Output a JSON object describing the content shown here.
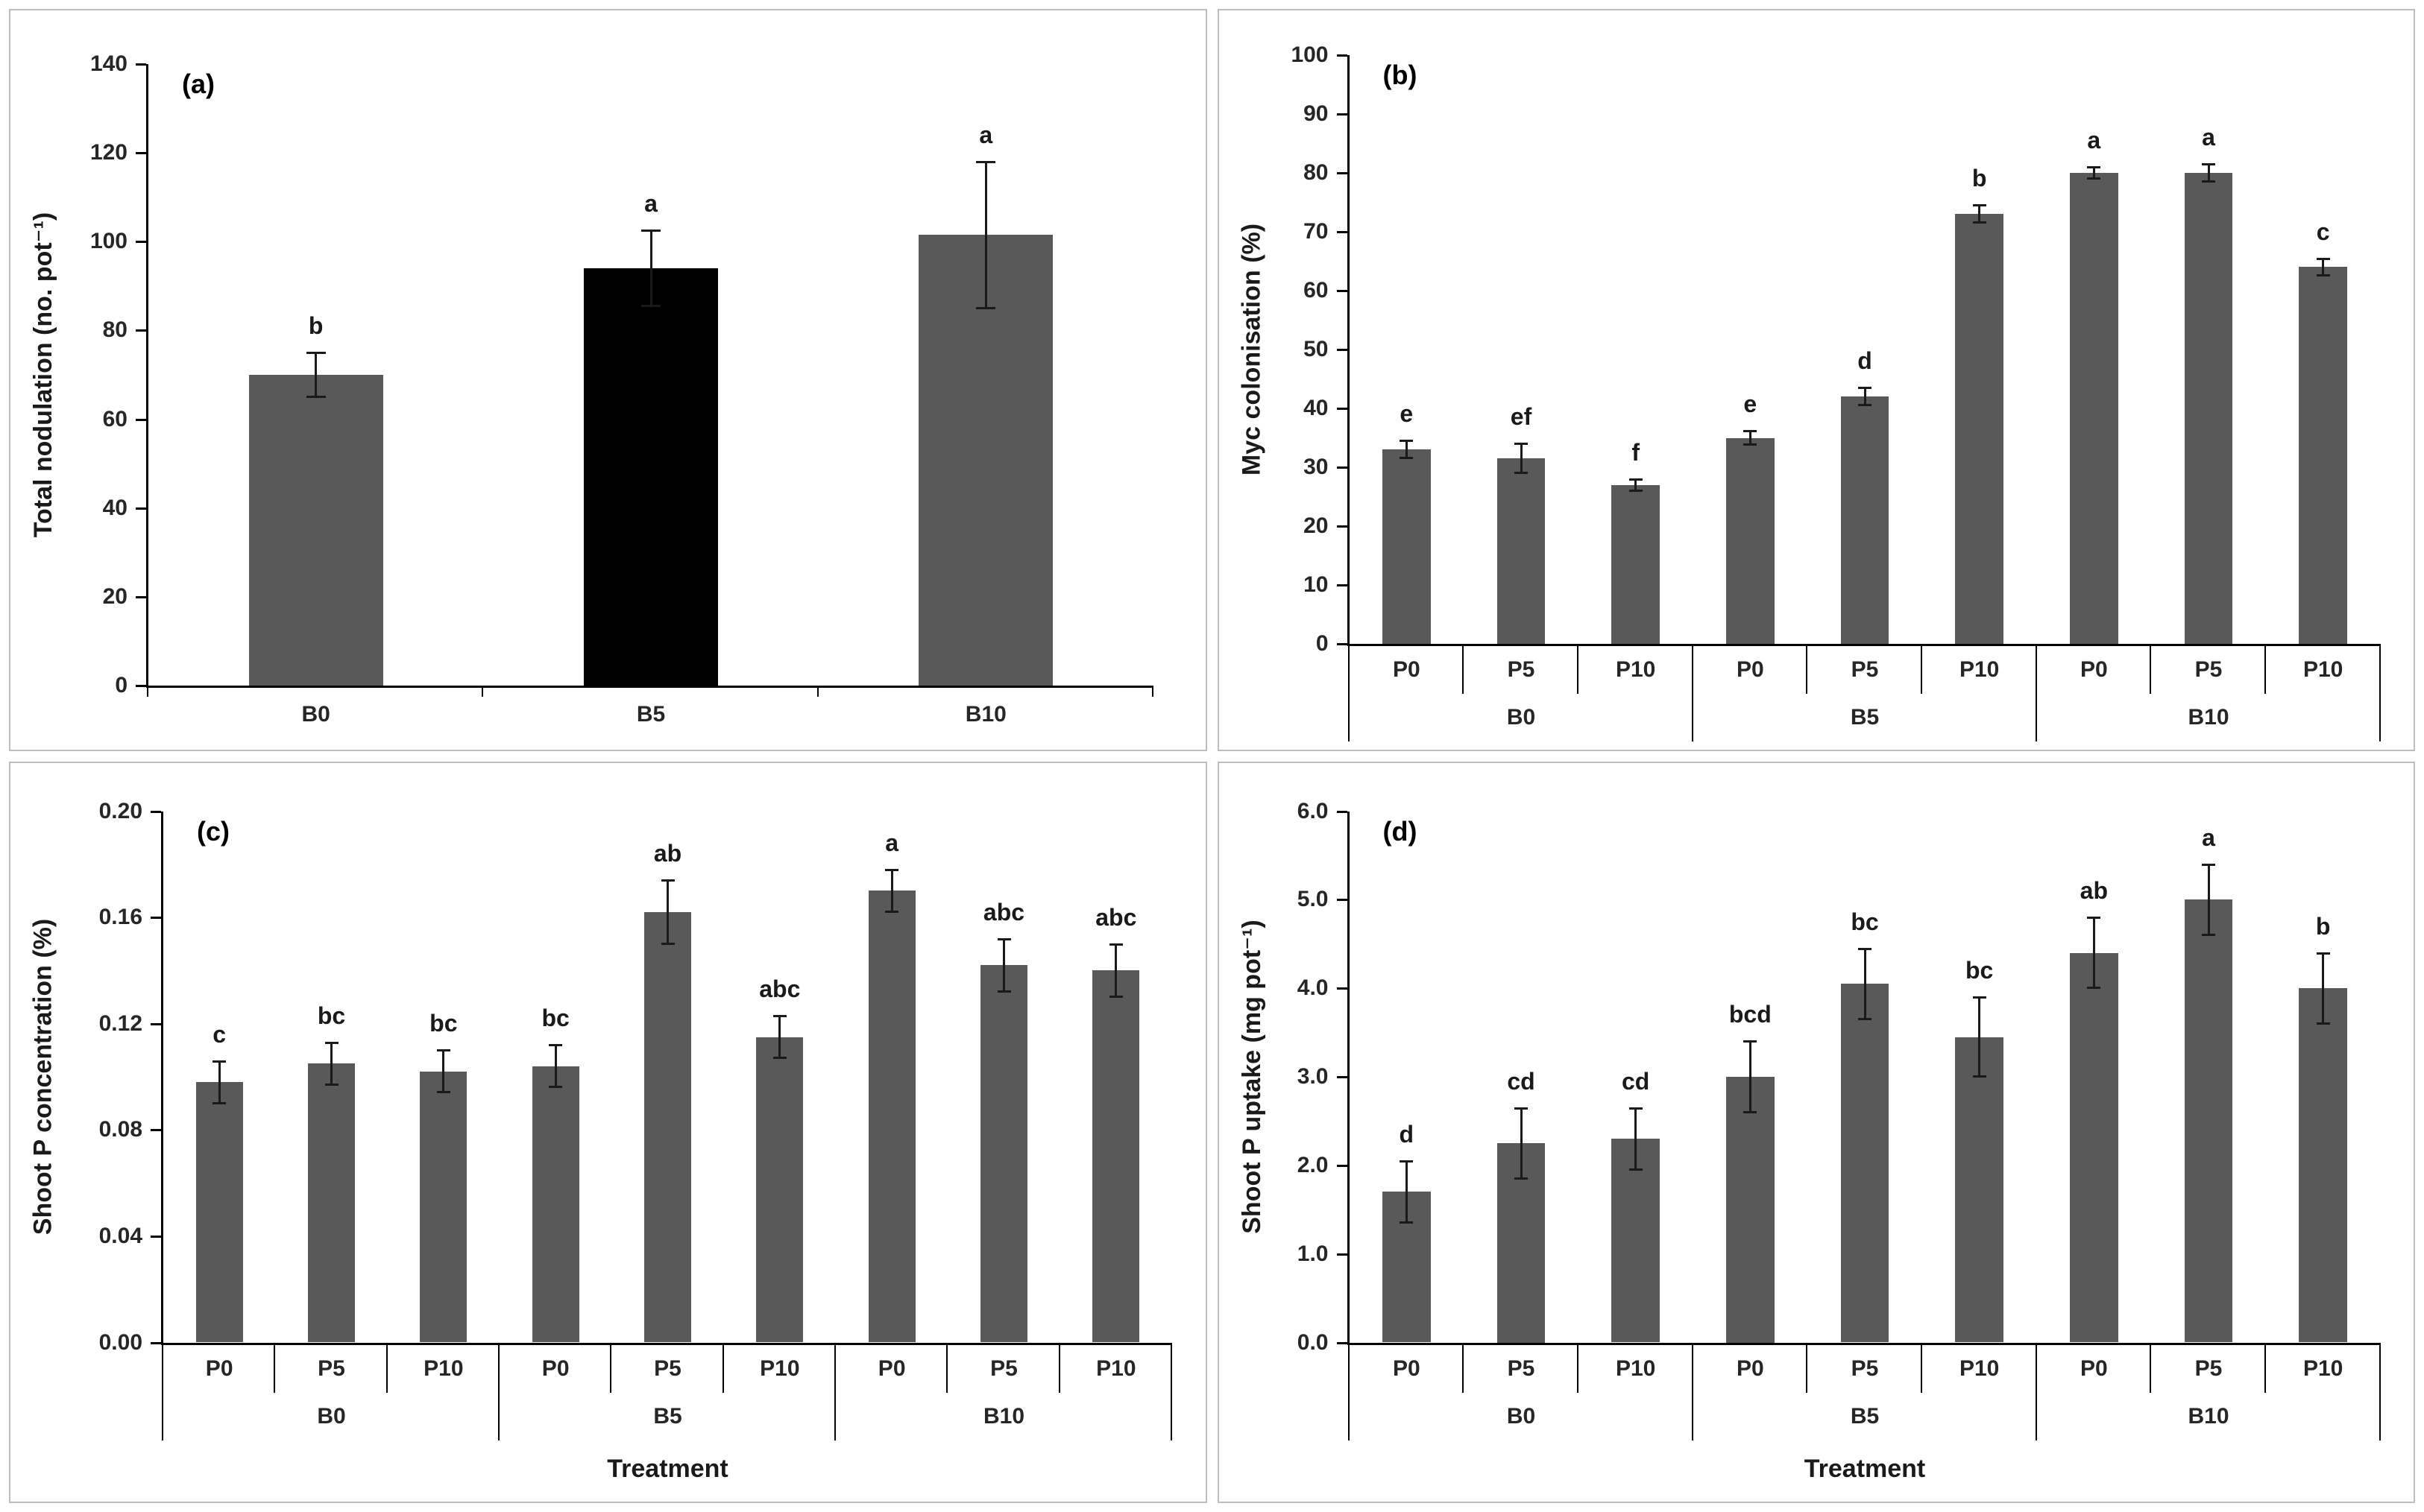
{
  "figure": {
    "panel_labels": [
      "(a)",
      "(b)",
      "(c)",
      "(d)"
    ]
  },
  "colors": {
    "bar": "#595959",
    "bar_highlight": "#000000",
    "axis": "#000000",
    "text": "#262626",
    "panel_border": "#bdbdbd"
  },
  "chart_data": [
    {
      "type": "bar",
      "panel_label": "(a)",
      "ylabel": "Total nodulation (no. pot⁻¹)",
      "xlabel": "",
      "ylim": [
        0,
        140
      ],
      "ytick_step": 20,
      "ytick_labels": [
        "0",
        "20",
        "40",
        "60",
        "80",
        "100",
        "120",
        "140"
      ],
      "categories": [
        "B0",
        "B5",
        "B10"
      ],
      "values": [
        70,
        94,
        101.5
      ],
      "errors": [
        5,
        8.5,
        16.5
      ],
      "letters": [
        "b",
        "a",
        "a"
      ],
      "bar_colors": [
        "#595959",
        "#000000",
        "#595959"
      ],
      "legend": "none",
      "grid": false
    },
    {
      "type": "bar",
      "panel_label": "(b)",
      "ylabel": "Myc colonisation (%)",
      "xlabel": "",
      "ylim": [
        0,
        100
      ],
      "ytick_step": 10,
      "ytick_labels": [
        "0",
        "10",
        "20",
        "30",
        "40",
        "50",
        "60",
        "70",
        "80",
        "90",
        "100"
      ],
      "groups": [
        "B0",
        "B5",
        "B10"
      ],
      "subcategories": [
        "P0",
        "P5",
        "P10"
      ],
      "values": [
        33,
        31.5,
        27,
        35,
        42,
        73,
        80,
        80,
        64
      ],
      "errors": [
        1.5,
        2.5,
        1,
        1.2,
        1.5,
        1.5,
        1,
        1.5,
        1.5
      ],
      "letters": [
        "e",
        "ef",
        "f",
        "e",
        "d",
        "b",
        "a",
        "a",
        "c"
      ],
      "legend": "none",
      "grid": false
    },
    {
      "type": "bar",
      "panel_label": "(c)",
      "ylabel": "Shoot P concentration (%)",
      "xlabel": "Treatment",
      "ylim": [
        0,
        0.2
      ],
      "ytick_step": 0.04,
      "ytick_labels": [
        "0.00",
        "0.04",
        "0.08",
        "0.12",
        "0.16",
        "0.20"
      ],
      "groups": [
        "B0",
        "B5",
        "B10"
      ],
      "subcategories": [
        "P0",
        "P5",
        "P10"
      ],
      "values": [
        0.098,
        0.105,
        0.102,
        0.104,
        0.162,
        0.115,
        0.17,
        0.142,
        0.14
      ],
      "errors": [
        0.008,
        0.008,
        0.008,
        0.008,
        0.012,
        0.008,
        0.008,
        0.01,
        0.01
      ],
      "letters": [
        "c",
        "bc",
        "bc",
        "bc",
        "ab",
        "abc",
        "a",
        "abc",
        "abc"
      ],
      "legend": "none",
      "grid": false
    },
    {
      "type": "bar",
      "panel_label": "(d)",
      "ylabel": "Shoot P uptake (mg pot⁻¹)",
      "xlabel": "Treatment",
      "ylim": [
        0,
        6
      ],
      "ytick_step": 1,
      "ytick_labels": [
        "0.0",
        "1.0",
        "2.0",
        "3.0",
        "4.0",
        "5.0",
        "6.0"
      ],
      "groups": [
        "B0",
        "B5",
        "B10"
      ],
      "subcategories": [
        "P0",
        "P5",
        "P10"
      ],
      "values": [
        1.7,
        2.25,
        2.3,
        3.0,
        4.05,
        3.45,
        4.4,
        5.0,
        4.0
      ],
      "errors": [
        0.35,
        0.4,
        0.35,
        0.4,
        0.4,
        0.45,
        0.4,
        0.4,
        0.4
      ],
      "letters": [
        "d",
        "cd",
        "cd",
        "bcd",
        "bc",
        "bc",
        "ab",
        "a",
        "b"
      ],
      "legend": "none",
      "grid": false
    }
  ]
}
